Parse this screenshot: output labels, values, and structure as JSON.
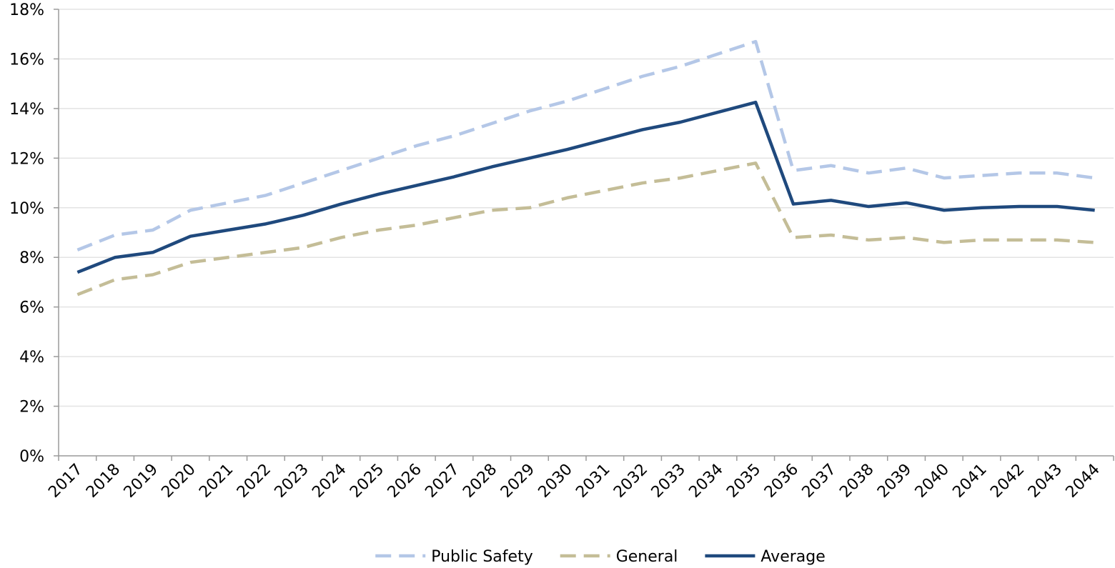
{
  "chart_data": {
    "type": "line",
    "categories": [
      "2017",
      "2018",
      "2019",
      "2020",
      "2021",
      "2022",
      "2023",
      "2024",
      "2025",
      "2026",
      "2027",
      "2028",
      "2029",
      "2030",
      "2031",
      "2032",
      "2033",
      "2034",
      "2035",
      "2036",
      "2037",
      "2038",
      "2039",
      "2040",
      "2041",
      "2042",
      "2043",
      "2044"
    ],
    "series": [
      {
        "name": "Public Safety",
        "color": "#b4c7e7",
        "style": "dashed",
        "values": [
          8.3,
          8.9,
          9.1,
          9.9,
          10.2,
          10.5,
          11.0,
          11.5,
          12.0,
          12.5,
          12.9,
          13.4,
          13.9,
          14.3,
          14.8,
          15.3,
          15.7,
          16.2,
          16.7,
          11.5,
          11.7,
          11.4,
          11.6,
          11.2,
          11.3,
          11.4,
          11.4,
          11.2
        ]
      },
      {
        "name": "General",
        "color": "#c4bd97",
        "style": "dashed",
        "values": [
          6.5,
          7.1,
          7.3,
          7.8,
          8.0,
          8.2,
          8.4,
          8.8,
          9.1,
          9.3,
          9.6,
          9.9,
          10.0,
          10.4,
          10.7,
          11.0,
          11.2,
          11.5,
          11.8,
          8.8,
          8.9,
          8.7,
          8.8,
          8.6,
          8.7,
          8.7,
          8.7,
          8.6
        ]
      },
      {
        "name": "Average",
        "color": "#1f497d",
        "style": "solid",
        "values": [
          7.4,
          8.0,
          8.2,
          8.85,
          9.1,
          9.35,
          9.7,
          10.15,
          10.55,
          10.9,
          11.25,
          11.65,
          12.0,
          12.35,
          12.75,
          13.15,
          13.45,
          13.85,
          14.25,
          10.15,
          10.3,
          10.05,
          10.2,
          9.9,
          10.0,
          10.05,
          10.05,
          9.9
        ]
      }
    ],
    "ylim": [
      0,
      18
    ],
    "yticks": [
      {
        "value": 0,
        "label": "0%"
      },
      {
        "value": 2,
        "label": "2%"
      },
      {
        "value": 4,
        "label": "4%"
      },
      {
        "value": 6,
        "label": "6%"
      },
      {
        "value": 8,
        "label": "8%"
      },
      {
        "value": 10,
        "label": "10%"
      },
      {
        "value": 12,
        "label": "12%"
      },
      {
        "value": 14,
        "label": "14%"
      },
      {
        "value": 16,
        "label": "16%"
      },
      {
        "value": 18,
        "label": "18%"
      }
    ],
    "grid": true,
    "legend": "bottom"
  }
}
